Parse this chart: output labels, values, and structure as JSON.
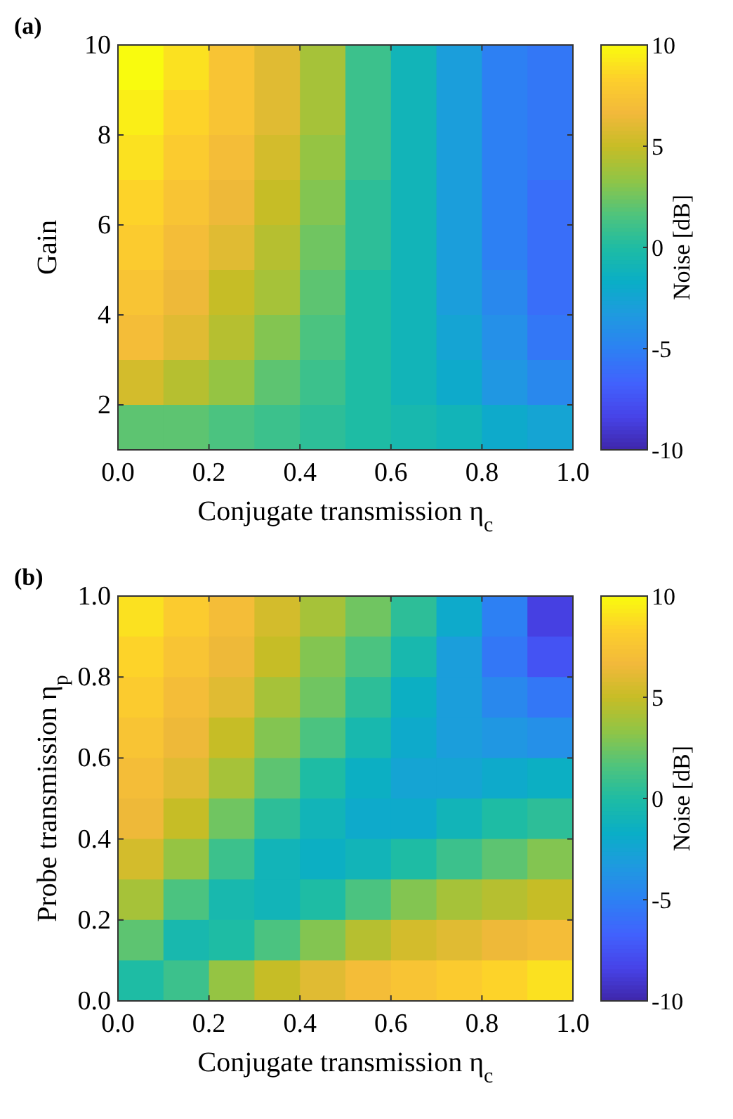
{
  "chart_data": [
    {
      "type": "heatmap",
      "title": "(a)",
      "xlabel": "Conjugate transmission η$_{c}$",
      "ylabel": "Gain",
      "clabel": "Noise [dB]",
      "x": [
        0.05,
        0.15,
        0.25,
        0.35,
        0.45,
        0.55,
        0.65,
        0.75,
        0.85,
        0.95
      ],
      "y": [
        9.5,
        8.5,
        7.5,
        6.5,
        5.5,
        4.5,
        3.5,
        2.5,
        1.5
      ],
      "xlim": [
        0,
        1
      ],
      "xticks": [
        {
          "value": 0,
          "label": "0.0"
        },
        {
          "value": 0.2,
          "label": "0.2"
        },
        {
          "value": 0.4,
          "label": "0.4"
        },
        {
          "value": 0.6,
          "label": "0.6"
        },
        {
          "value": 0.8,
          "label": "0.8"
        },
        {
          "value": 1,
          "label": "1.0"
        }
      ],
      "ylim": [
        1,
        10
      ],
      "yticks": [
        2,
        4,
        6,
        8,
        10
      ],
      "clim": [
        -10,
        10
      ],
      "cticks": [
        -10,
        -5,
        0,
        5,
        10
      ],
      "cells": [
        [
          10,
          9,
          7.5,
          6,
          4,
          1,
          -1,
          -3,
          -5,
          -5.5
        ],
        [
          9.5,
          8.5,
          7.5,
          6,
          4,
          1,
          -1,
          -3,
          -5,
          -5.5
        ],
        [
          9,
          8,
          7,
          5.5,
          3.5,
          1,
          -1,
          -3,
          -5,
          -5.5
        ],
        [
          8.5,
          7.5,
          6.5,
          5,
          3,
          0.5,
          -1,
          -3,
          -5,
          -6
        ],
        [
          8,
          7,
          6,
          4.5,
          2.5,
          0.5,
          -1,
          -3,
          -5,
          -6
        ],
        [
          7.5,
          6.5,
          5,
          4,
          2,
          0,
          -1,
          -3,
          -4.5,
          -6
        ],
        [
          7,
          6,
          4.5,
          3,
          1.5,
          0,
          -1,
          -2.5,
          -4,
          -5.5
        ],
        [
          5.5,
          4.5,
          3.5,
          2,
          1,
          0,
          -1,
          -2,
          -3.5,
          -4.5
        ],
        [
          2,
          2,
          1.5,
          1,
          0.5,
          0,
          -0.5,
          -1,
          -2,
          -2.5
        ]
      ]
    },
    {
      "type": "heatmap",
      "title": "(b)",
      "xlabel": "Conjugate transmission η$_{c}$",
      "ylabel": "Probe transmission η$_{p}$",
      "clabel": "Noise [dB]",
      "x": [
        0.05,
        0.15,
        0.25,
        0.35,
        0.45,
        0.55,
        0.65,
        0.75,
        0.85,
        0.95
      ],
      "y": [
        0.95,
        0.85,
        0.75,
        0.65,
        0.55,
        0.45,
        0.35,
        0.25,
        0.15,
        0.05
      ],
      "xlim": [
        0,
        1
      ],
      "xticks": [
        {
          "value": 0,
          "label": "0.0"
        },
        {
          "value": 0.2,
          "label": "0.2"
        },
        {
          "value": 0.4,
          "label": "0.4"
        },
        {
          "value": 0.6,
          "label": "0.6"
        },
        {
          "value": 0.8,
          "label": "0.8"
        },
        {
          "value": 1,
          "label": "1.0"
        }
      ],
      "ylim": [
        0,
        1
      ],
      "yticks": [
        {
          "value": 0,
          "label": "0.0"
        },
        {
          "value": 0.2,
          "label": "0.2"
        },
        {
          "value": 0.4,
          "label": "0.4"
        },
        {
          "value": 0.6,
          "label": "0.6"
        },
        {
          "value": 0.8,
          "label": "0.8"
        },
        {
          "value": 1,
          "label": "1.0"
        }
      ],
      "clim": [
        -10,
        10
      ],
      "cticks": [
        -10,
        -5,
        0,
        5,
        10
      ],
      "cells": [
        [
          9,
          8,
          7,
          5.5,
          4,
          2.5,
          0.5,
          -2,
          -5,
          -8.5
        ],
        [
          8.5,
          7.5,
          6.5,
          5,
          3,
          1.5,
          -0.5,
          -3,
          -5.5,
          -7.5
        ],
        [
          8,
          7,
          6,
          4,
          2.5,
          0.5,
          -1.5,
          -3,
          -4.5,
          -5.5
        ],
        [
          7.5,
          6.5,
          5,
          3,
          1.5,
          -0.5,
          -2,
          -3,
          -3.5,
          -4
        ],
        [
          7,
          6,
          4,
          2,
          0,
          -1.5,
          -2.5,
          -2.5,
          -2,
          -1.5
        ],
        [
          6.5,
          5,
          2.5,
          0.5,
          -1,
          -2,
          -2,
          -1,
          0,
          0.5
        ],
        [
          5.5,
          3.5,
          1,
          -1,
          -1.5,
          -1,
          0,
          1,
          2,
          3
        ],
        [
          4,
          1.5,
          -0.5,
          -1,
          0,
          1.5,
          3,
          4,
          4.5,
          5
        ],
        [
          2,
          -0.5,
          0,
          1.5,
          3,
          4.5,
          5.5,
          6,
          6.5,
          7
        ],
        [
          0,
          1,
          3.5,
          5,
          6,
          7,
          7.5,
          8,
          8.5,
          9
        ]
      ]
    }
  ]
}
